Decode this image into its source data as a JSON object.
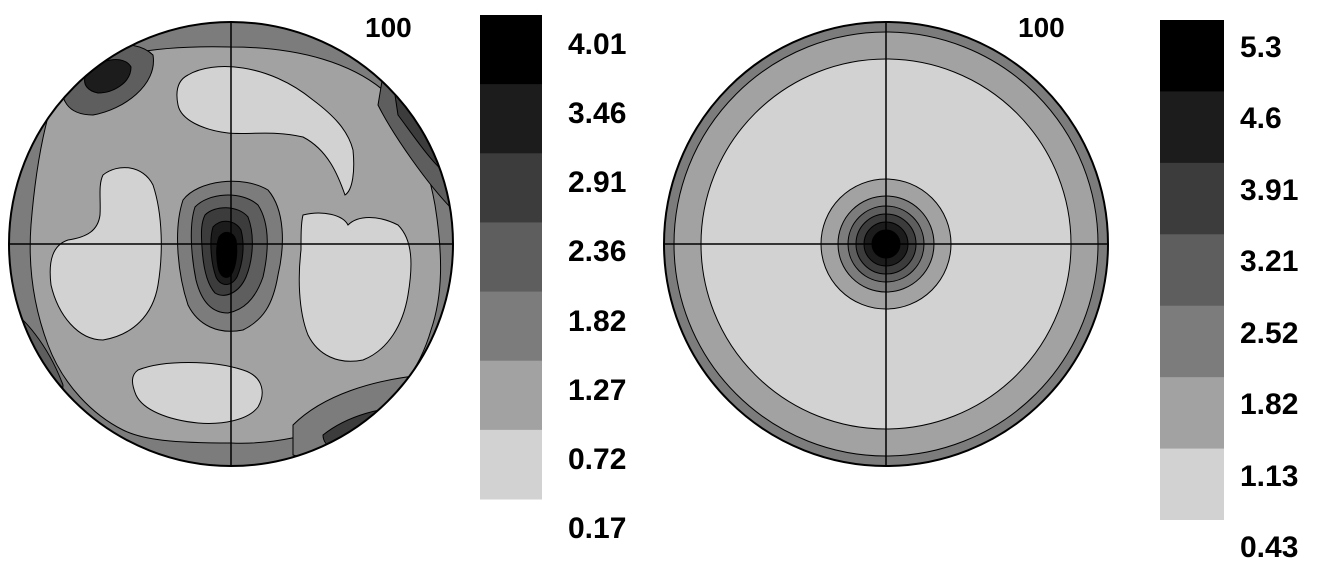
{
  "chart_data": [
    {
      "type": "heatmap",
      "subtype": "pole-figure",
      "pole_label": "100",
      "colorbar_ticks": [
        "4.01",
        "3.46",
        "2.91",
        "2.36",
        "1.82",
        "1.27",
        "0.72",
        "0.17"
      ],
      "colorbar_values": [
        4.01,
        3.46,
        2.91,
        2.36,
        1.82,
        1.27,
        0.72,
        0.17
      ],
      "colorbar_colors": [
        "#000000",
        "#1c1c1c",
        "#3c3c3c",
        "#5e5e5e",
        "#7c7c7c",
        "#a2a2a2",
        "#d2d2d2"
      ],
      "features": {
        "maximum_location": "center",
        "low_regions": [
          "top",
          "left",
          "right",
          "bottom"
        ],
        "secondary_maxima": [
          "top-left edge",
          "right edge",
          "bottom-left edge",
          "bottom-right edge"
        ]
      }
    },
    {
      "type": "heatmap",
      "subtype": "pole-figure",
      "pole_label": "100",
      "colorbar_ticks": [
        "5.3",
        "4.6",
        "3.91",
        "3.21",
        "2.52",
        "1.82",
        "1.13",
        "0.43"
      ],
      "colorbar_values": [
        5.3,
        4.6,
        3.91,
        3.21,
        2.52,
        1.82,
        1.13,
        0.43
      ],
      "colorbar_colors": [
        "#000000",
        "#1c1c1c",
        "#3c3c3c",
        "#5e5e5e",
        "#7c7c7c",
        "#a2a2a2",
        "#d2d2d2"
      ],
      "features": {
        "symmetry": "axisymmetric",
        "maximum_location": "center",
        "outer_rings": [
          "#a2a2a2",
          "#7c7c7c"
        ]
      }
    }
  ]
}
